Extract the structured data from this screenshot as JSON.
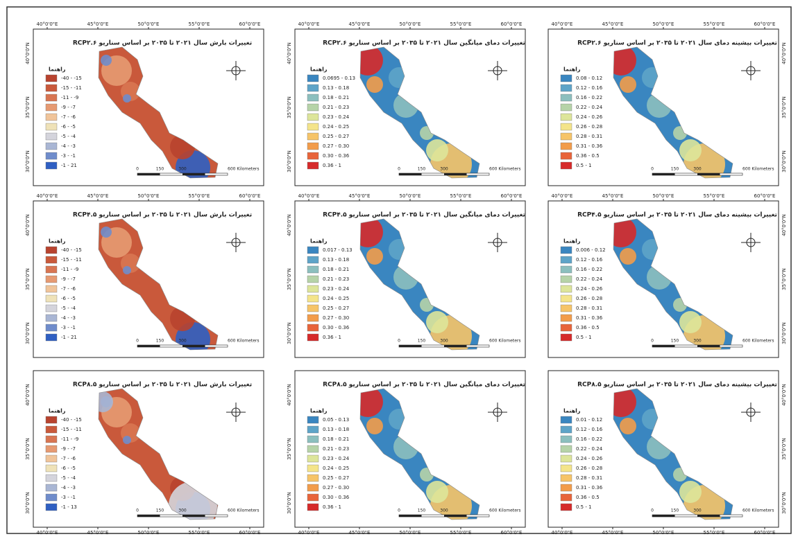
{
  "panels": [
    {
      "title": "تغییرات بارش سال ۲۰۲۱ تا ۲۰۳۵ بر اساس سناریو RCP۲.۶",
      "legend_title": "راهنما",
      "legend": [
        "-40 - -15",
        "-15 - -11",
        "-11 - -9",
        "-9 - -7",
        "-7 - -6",
        "-6 - -5",
        "-5 - -4",
        "-4 - -3",
        "-3 - -1",
        "-1 - 21"
      ],
      "x_ticks": [
        "40°0'0\"E",
        "45°0'0\"E",
        "50°0'0\"E",
        "55°0'0\"E",
        "60°0'0\"E"
      ],
      "y_ticks": [
        "40°0'0\"N",
        "35°0'0\"N",
        "30°0'0\"N"
      ],
      "scale": [
        "0",
        "150",
        "300",
        "600 Kilometers"
      ]
    },
    {
      "title": "تغییرات دمای میانگین سال ۲۰۲۱ تا ۲۰۳۵ بر اساس سناریو RCP۲.۶",
      "legend_title": "راهنما",
      "legend": [
        "0.0695 - 0.13",
        "0.13 - 0.18",
        "0.18 - 0.21",
        "0.21 - 0.23",
        "0.23 - 0.24",
        "0.24 - 0.25",
        "0.25 - 0.27",
        "0.27 - 0.30",
        "0.30 - 0.36",
        "0.36 - 1"
      ],
      "x_ticks": [
        "40°0'0\"E",
        "45°0'0\"E",
        "50°0'0\"E",
        "55°0'0\"E",
        "60°0'0\"E"
      ],
      "y_ticks": [
        "40°0'0\"N",
        "35°0'0\"N",
        "30°0'0\"N"
      ],
      "scale": [
        "0",
        "150",
        "300",
        "600 Kilometers"
      ]
    },
    {
      "title": "تغییرات بیشینه دمای سال ۲۰۲۱ تا ۲۰۳۵ بر اساس سناریو RCP۲.۶",
      "legend_title": "راهنما",
      "legend": [
        "0.08 - 0.12",
        "0.12 - 0.16",
        "0.16 - 0.22",
        "0.22 - 0.24",
        "0.24 - 0.26",
        "0.26 - 0.28",
        "0.28 - 0.31",
        "0.31 - 0.36",
        "0.36 - 0.5",
        "0.5 - 1"
      ],
      "x_ticks": [
        "40°0'0\"E",
        "45°0'0\"E",
        "50°0'0\"E",
        "55°0'0\"E",
        "60°0'0\"E"
      ],
      "y_ticks": [
        "40°0'0\"N",
        "35°0'0\"N",
        "30°0'0\"N"
      ],
      "scale": [
        "0",
        "150",
        "300",
        "600 Kilometers"
      ]
    },
    {
      "title": "تغییرات بارش سال ۲۰۲۱ تا ۲۰۳۵ بر اساس سناریو RCP۴.۵",
      "legend_title": "راهنما",
      "legend": [
        "-40 - -15",
        "-15 - -11",
        "-11 - -9",
        "-9 - -7",
        "-7 - -6",
        "-6 - -5",
        "-5 - -4",
        "-4 - -3",
        "-3 - -1",
        "-1 - 21"
      ],
      "x_ticks": [
        "40°0'0\"E",
        "45°0'0\"E",
        "50°0'0\"E",
        "55°0'0\"E",
        "60°0'0\"E"
      ],
      "y_ticks": [
        "40°0'0\"N",
        "35°0'0\"N",
        "30°0'0\"N"
      ],
      "scale": [
        "0",
        "150",
        "300",
        "600 Kilometers"
      ]
    },
    {
      "title": "تغییرات دمای میانگین سال ۲۰۲۱ تا ۲۰۳۵ بر اساس سناریو RCP۴.۵",
      "legend_title": "راهنما",
      "legend": [
        "0.017 - 0.13",
        "0.13 - 0.18",
        "0.18 - 0.21",
        "0.21 - 0.23",
        "0.23 - 0.24",
        "0.24 - 0.25",
        "0.25 - 0.27",
        "0.27 - 0.30",
        "0.30 - 0.36",
        "0.36 - 1"
      ],
      "x_ticks": [
        "40°0'0\"E",
        "45°0'0\"E",
        "50°0'0\"E",
        "55°0'0\"E",
        "60°0'0\"E"
      ],
      "y_ticks": [
        "40°0'0\"N",
        "35°0'0\"N",
        "30°0'0\"N"
      ],
      "scale": [
        "0",
        "150",
        "300",
        "600 Kilometers"
      ]
    },
    {
      "title": "تغییرات بیشینه دمای سال ۲۰۲۱ تا ۲۰۳۵ بر اساس سناریو RCP۴.۵",
      "legend_title": "راهنما",
      "legend": [
        "0.006 - 0.12",
        "0.12 - 0.16",
        "0.16 - 0.22",
        "0.22 - 0.24",
        "0.24 - 0.26",
        "0.26 - 0.28",
        "0.28 - 0.31",
        "0.31 - 0.36",
        "0.36 - 0.5",
        "0.5 - 1"
      ],
      "x_ticks": [
        "40°0'0\"E",
        "45°0'0\"E",
        "50°0'0\"E",
        "55°0'0\"E",
        "60°0'0\"E"
      ],
      "y_ticks": [
        "40°0'0\"N",
        "35°0'0\"N",
        "30°0'0\"N"
      ],
      "scale": [
        "0",
        "150",
        "300",
        "600 Kilometers"
      ]
    },
    {
      "title": "تغییرات بارش سال ۲۰۲۱ تا ۲۰۳۵ بر اساس سناریو RCP۸.۵",
      "legend_title": "راهنما",
      "legend": [
        "-40 - -15",
        "-15 - -11",
        "-11 - -9",
        "-9 - -7",
        "-7 - -6",
        "-6 - -5",
        "-5 - -4",
        "-4 - -3",
        "-3 - -1",
        "-1 - 13"
      ],
      "x_ticks": [
        "40°0'0\"E",
        "45°0'0\"E",
        "50°0'0\"E",
        "55°0'0\"E",
        "60°0'0\"E"
      ],
      "y_ticks": [
        "40°0'0\"N",
        "35°0'0\"N",
        "30°0'0\"N"
      ],
      "scale": [
        "0",
        "150",
        "300",
        "600 Kilometers"
      ]
    },
    {
      "title": "تغییرات دمای میانگین سال ۲۰۲۱ تا ۲۰۳۵ بر اساس سناریو RCP۸.۵",
      "legend_title": "راهنما",
      "legend": [
        "0.05 - 0.13",
        "0.13 - 0.18",
        "0.18 - 0.21",
        "0.21 - 0.23",
        "0.23 - 0.24",
        "0.24 - 0.25",
        "0.25 - 0.27",
        "0.27 - 0.30",
        "0.30 - 0.36",
        "0.36 - 1"
      ],
      "x_ticks": [
        "40°0'0\"E",
        "45°0'0\"E",
        "50°0'0\"E",
        "55°0'0\"E",
        "60°0'0\"E"
      ],
      "y_ticks": [
        "40°0'0\"N",
        "35°0'0\"N",
        "30°0'0\"N"
      ],
      "scale": [
        "0",
        "150",
        "300",
        "600 Kilometers"
      ]
    },
    {
      "title": "تغییرات بیشینه دمای سال ۲۰۲۱ تا ۲۰۳۵ بر اساس سناریو RCP۸.۵",
      "legend_title": "راهنما",
      "legend": [
        "0.01 - 0.12",
        "0.12 - 0.16",
        "0.16 - 0.22",
        "0.22 - 0.24",
        "0.24 - 0.26",
        "0.26 - 0.28",
        "0.28 - 0.31",
        "0.31 - 0.36",
        "0.36 - 0.5",
        "0.5 - 1"
      ],
      "x_ticks": [
        "40°0'0\"E",
        "45°0'0\"E",
        "50°0'0\"E",
        "55°0'0\"E",
        "60°0'0\"E"
      ],
      "y_ticks": [
        "40°0'0\"N",
        "35°0'0\"N",
        "30°0'0\"N"
      ],
      "scale": [
        "0",
        "150",
        "300",
        "600 Kilometers"
      ]
    }
  ]
}
